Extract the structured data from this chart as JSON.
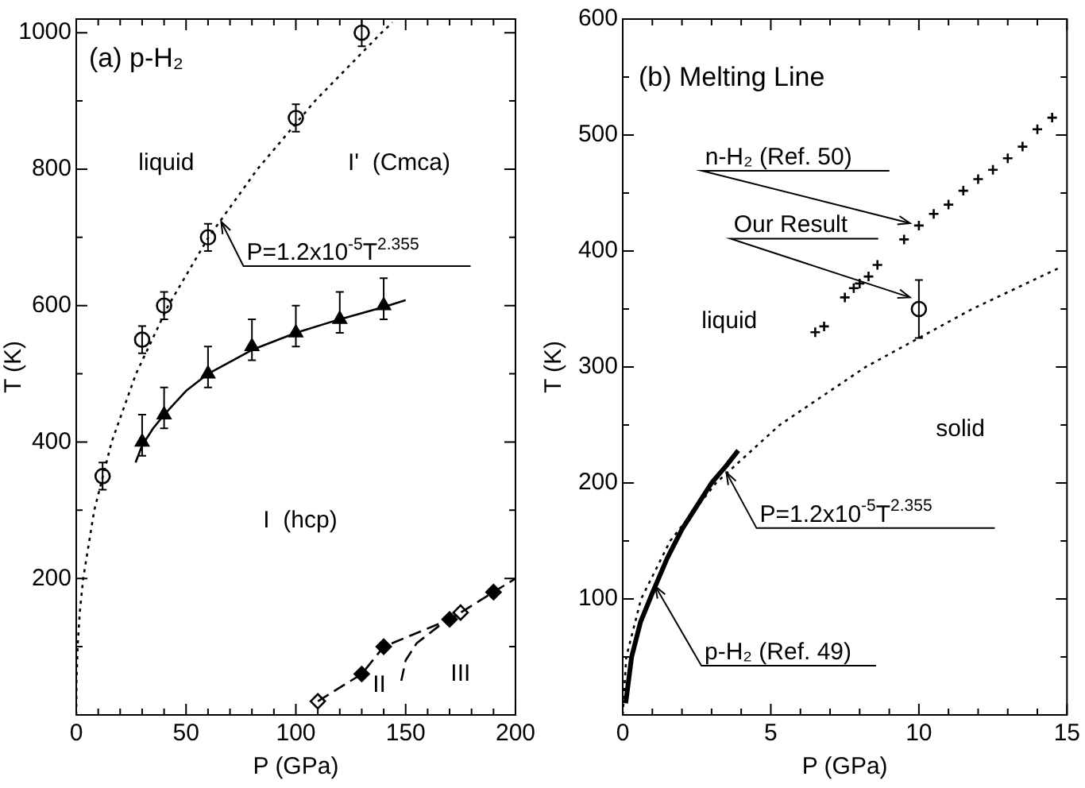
{
  "chart_data": [
    {
      "type": "scatter",
      "title": "(a) p-H₂",
      "xlabel": "P (GPa)",
      "ylabel": "T (K)",
      "xlim": [
        0,
        200
      ],
      "ylim": [
        0,
        1020
      ],
      "xticks": [
        0,
        {
          "value": 10,
          "label": null
        },
        {
          "value": 20,
          "label": null
        },
        {
          "value": 30,
          "label": null
        },
        {
          "value": 40,
          "label": null
        },
        50,
        {
          "value": 60,
          "label": null
        },
        {
          "value": 70,
          "label": null
        },
        {
          "value": 80,
          "label": null
        },
        {
          "value": 90,
          "label": null
        },
        100,
        {
          "value": 110,
          "label": null
        },
        {
          "value": 120,
          "label": null
        },
        {
          "value": 130,
          "label": null
        },
        {
          "value": 140,
          "label": null
        },
        150,
        {
          "value": 160,
          "label": null
        },
        {
          "value": 170,
          "label": null
        },
        {
          "value": 180,
          "label": null
        },
        {
          "value": 190,
          "label": null
        },
        200
      ],
      "yticks": [
        {
          "value": 0,
          "label": null
        },
        {
          "value": 100,
          "label": null
        },
        200,
        {
          "value": 300,
          "label": null
        },
        400,
        {
          "value": 500,
          "label": null
        },
        600,
        {
          "value": 700,
          "label": null
        },
        800,
        {
          "value": 900,
          "label": null
        },
        1000
      ],
      "series": [
        {
          "type": "line",
          "line_style": "dotted",
          "marker": "none",
          "color": "#000000",
          "x": [
            0,
            0.12,
            0.62,
            1.6,
            3.15,
            8.2,
            16.1,
            27.2,
            41.9,
            60.2,
            82.5,
            108.7,
            139,
            144
          ],
          "values": [
            0,
            50,
            100,
            150,
            200,
            300,
            400,
            500,
            600,
            700,
            800,
            900,
            1000,
            1015
          ]
        },
        {
          "type": "line",
          "line_style": "solid",
          "marker": "none",
          "color": "#000000",
          "x": [
            27,
            30,
            35,
            40,
            50,
            60,
            80,
            100,
            120,
            140,
            150
          ],
          "values": [
            370,
            395,
            420,
            440,
            475,
            500,
            535,
            560,
            580,
            598,
            608
          ]
        },
        {
          "type": "line",
          "line_style": "dashed",
          "marker": "none",
          "color": "#000000",
          "x": [
            110,
            130,
            140,
            170,
            200
          ],
          "values": [
            20,
            60,
            100,
            140,
            200
          ]
        },
        {
          "type": "line",
          "line_style": "dashed",
          "marker": "none",
          "color": "#000000",
          "x": [
            148,
            150,
            155,
            165,
            175
          ],
          "values": [
            50,
            80,
            105,
            130,
            150
          ]
        },
        {
          "type": "scatter",
          "marker": "circle",
          "color": "#000000",
          "x": [
            12,
            30,
            40,
            60,
            100,
            130
          ],
          "values": [
            350,
            550,
            600,
            700,
            875,
            1000
          ],
          "errors": [
            20,
            20,
            20,
            20,
            20,
            20
          ]
        },
        {
          "type": "scatter",
          "marker": "triangle",
          "color": "#000000",
          "x": [
            30,
            40,
            60,
            80,
            100,
            120,
            140
          ],
          "values": [
            400,
            440,
            500,
            540,
            560,
            580,
            600
          ],
          "errors": [
            [
              380,
              440
            ],
            [
              420,
              480
            ],
            [
              480,
              540
            ],
            [
              520,
              580
            ],
            [
              540,
              600
            ],
            [
              560,
              620
            ],
            [
              580,
              640
            ]
          ]
        },
        {
          "type": "scatter",
          "marker": "diamond",
          "color": "#000000",
          "x": [
            130,
            140,
            170,
            190
          ],
          "values": [
            60,
            100,
            140,
            180
          ]
        },
        {
          "type": "scatter",
          "marker": "diamond",
          "color": "#000000",
          "x": [
            110,
            175
          ],
          "values": [
            20,
            150
          ]
        }
      ],
      "annotations": [
        "liquid",
        "I'  (Cmca)",
        "I  (hcp)",
        "II",
        "III",
        {
          "text": "P=1.2x10$^{-5}$T$^{2.355}$",
          "x": 66,
          "y": 723
        }
      ]
    },
    {
      "type": "scatter",
      "title": "(b) Melting Line",
      "xlabel": "P (GPa)",
      "ylabel": "T (K)",
      "xlim": [
        0,
        15
      ],
      "ylim": [
        0,
        600
      ],
      "xticks": [
        0,
        {
          "value": 1,
          "label": null
        },
        {
          "value": 2,
          "label": null
        },
        {
          "value": 3,
          "label": null
        },
        {
          "value": 4,
          "label": null
        },
        5,
        {
          "value": 6,
          "label": null
        },
        {
          "value": 7,
          "label": null
        },
        {
          "value": 8,
          "label": null
        },
        {
          "value": 9,
          "label": null
        },
        10,
        {
          "value": 11,
          "label": null
        },
        {
          "value": 12,
          "label": null
        },
        {
          "value": 13,
          "label": null
        },
        {
          "value": 14,
          "label": null
        },
        15
      ],
      "yticks": [
        {
          "value": 0,
          "label": null
        },
        {
          "value": 50,
          "label": null
        },
        100,
        {
          "value": 150,
          "label": null
        },
        200,
        {
          "value": 250,
          "label": null
        },
        300,
        {
          "value": 350,
          "label": null
        },
        400,
        {
          "value": 450,
          "label": null
        },
        500,
        {
          "value": 550,
          "label": null
        },
        600
      ],
      "series": [
        {
          "type": "line",
          "line_style": "dotted",
          "marker": "none",
          "color": "#000000",
          "x": [
            0,
            0.12,
            0.62,
            1.6,
            3.15,
            5.3,
            8.2,
            11.8,
            14.7
          ],
          "values": [
            0,
            50,
            100,
            150,
            200,
            250,
            300,
            350,
            385
          ]
        },
        {
          "type": "line",
          "line_style": "solid",
          "marker": "none",
          "color": "#000000",
          "x": [
            0.1,
            0.3,
            0.6,
            1,
            1.5,
            2,
            2.5,
            3,
            3.5,
            3.9
          ],
          "values": [
            10,
            50,
            80,
            105,
            135,
            160,
            180,
            200,
            215,
            228
          ]
        },
        {
          "type": "scatter",
          "marker": "cross",
          "color": "#000000",
          "x": [
            6.5,
            6.8,
            7.5,
            7.8,
            8,
            8.3,
            8.6,
            9.5,
            10,
            10.5,
            11,
            11.5,
            12,
            12.5,
            13,
            13.5,
            14,
            14.5
          ],
          "values": [
            330,
            335,
            360,
            368,
            372,
            378,
            388,
            410,
            422,
            432,
            440,
            452,
            462,
            470,
            480,
            490,
            505,
            515
          ]
        },
        {
          "type": "scatter",
          "marker": "circle",
          "color": "#000000",
          "x": [
            10
          ],
          "values": [
            350
          ],
          "errors": [
            25
          ]
        }
      ],
      "annotations": [
        "liquid",
        "solid",
        {
          "text": "n-H₂ (Ref. 50)",
          "x": 9.7,
          "y": 424
        },
        {
          "text": "Our Result",
          "x": 9.7,
          "y": 360
        },
        {
          "text": "P=1.2x10$^{-5}$T$^{2.355}$",
          "x": 3.5,
          "y": 209
        },
        {
          "text": "p-H₂ (Ref. 49)",
          "x": 1.1,
          "y": 111
        }
      ]
    }
  ]
}
